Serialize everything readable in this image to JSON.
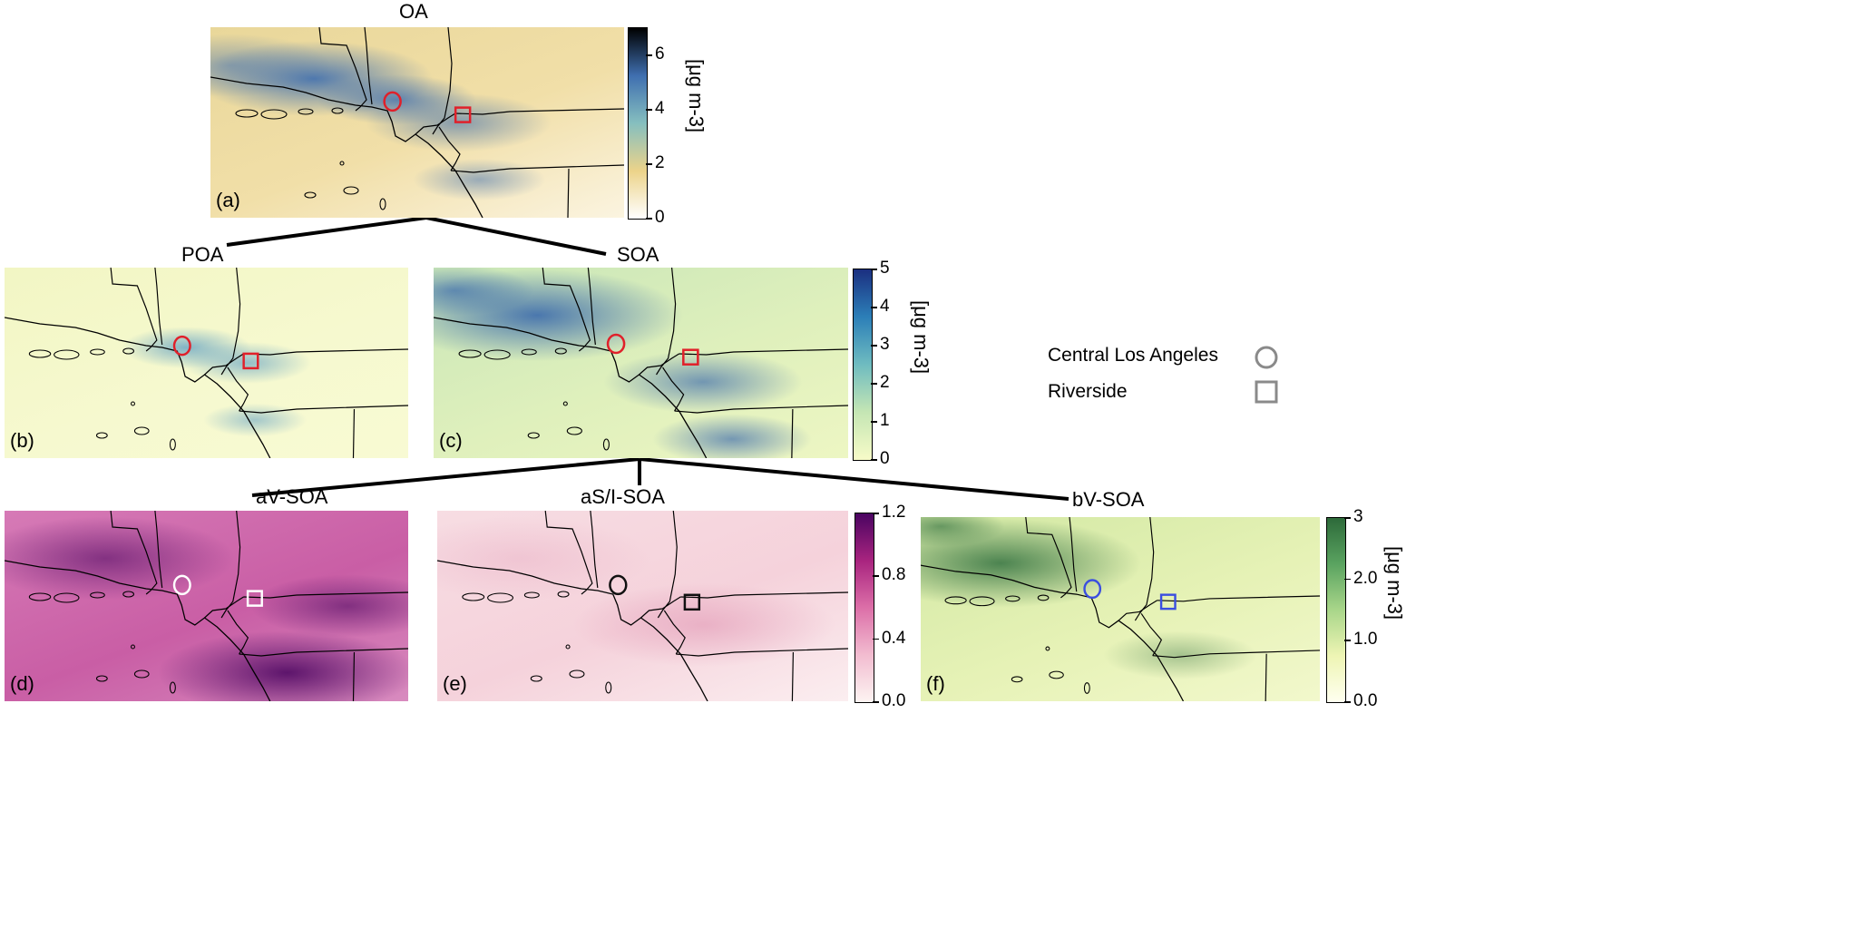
{
  "panels": [
    {
      "id": "a",
      "title": "OA",
      "label": "(a)",
      "low": "#fbf7ec",
      "mid": "#e8d48f",
      "high": "#4d94bd",
      "marker_color": "#e0202a",
      "colorbar": {
        "ticks": [
          "0",
          "2",
          "4",
          "6"
        ],
        "max": 7,
        "unit": "[μg m-3]",
        "colors": [
          "#ffffff",
          "#ecd38a",
          "#86bfbf",
          "#3f6fb0",
          "#000000"
        ]
      }
    },
    {
      "id": "b",
      "title": "POA",
      "label": "(b)",
      "marker_color": "#e0202a"
    },
    {
      "id": "c",
      "title": "SOA",
      "label": "(c)",
      "marker_color": "#e0202a",
      "colorbar": {
        "ticks": [
          "0",
          "1",
          "2",
          "3",
          "4",
          "5"
        ],
        "max": 5,
        "unit": "[μg m-3]",
        "colors": [
          "#f7fbc8",
          "#c5e6b4",
          "#6fbcc0",
          "#2c7fb8",
          "#1b2f80"
        ]
      }
    },
    {
      "id": "d",
      "title": "aV-SOA",
      "label": "(d)",
      "marker_color": "#ffffff"
    },
    {
      "id": "e",
      "title": "aS/I-SOA",
      "label": "(e)",
      "marker_color": "#111111",
      "colorbar": {
        "ticks": [
          "0.0",
          "0.4",
          "0.8",
          "1.2"
        ],
        "max": 1.2,
        "unit": "",
        "colors": [
          "#fdf4f2",
          "#f2bcd0",
          "#dc6fa8",
          "#a8247f",
          "#4a0461"
        ]
      }
    },
    {
      "id": "f",
      "title": "bV-SOA",
      "label": "(f)",
      "marker_color": "#3a4ee0",
      "colorbar": {
        "ticks": [
          "0.0",
          "1.0",
          "2.0",
          "3"
        ],
        "max": 3,
        "unit": "[μg m-3]",
        "colors": [
          "#fffff0",
          "#eef5b4",
          "#a9d68a",
          "#5aa360",
          "#2d6a3a"
        ]
      }
    }
  ],
  "legend": {
    "items": [
      {
        "label": "Central Los Angeles",
        "marker": "circle"
      },
      {
        "label": "Riverside",
        "marker": "square"
      }
    ],
    "marker_color": "#8a8a8a"
  }
}
